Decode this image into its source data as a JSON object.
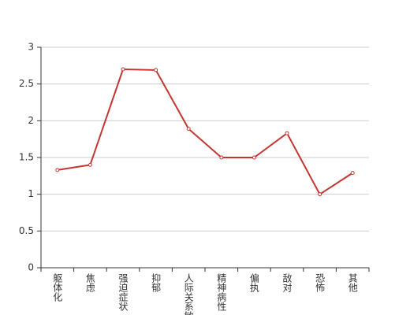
{
  "chart_data": {
    "type": "line",
    "categories": [
      "躯体化",
      "焦虑",
      "强迫症状",
      "抑郁",
      "人际关系敏感",
      "精神病性",
      "偏执",
      "敌对",
      "恐怖",
      "其他"
    ],
    "values": [
      1.33,
      1.4,
      2.7,
      2.69,
      1.89,
      1.5,
      1.5,
      1.83,
      1.0,
      1.29
    ],
    "color": "#c23531",
    "ylim": [
      0,
      3
    ],
    "yticks": [
      0,
      0.5,
      1,
      1.5,
      2,
      2.5,
      3
    ],
    "grid": true
  }
}
